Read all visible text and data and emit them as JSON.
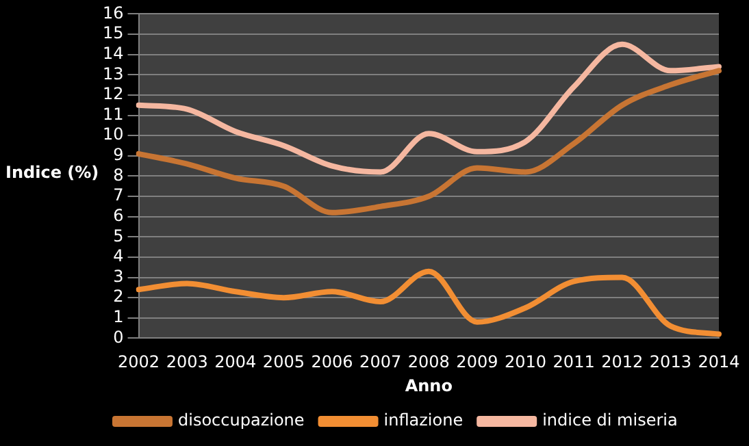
{
  "chart_data": {
    "type": "line",
    "xlabel": "Anno",
    "ylabel": "Indice (%)",
    "categories": [
      "2002",
      "2003",
      "2004",
      "2005",
      "2006",
      "2007",
      "2008",
      "2009",
      "2010",
      "2011",
      "2012",
      "2013",
      "2014"
    ],
    "series": [
      {
        "name": "disoccupazione",
        "color": "#c87533",
        "values": [
          9.1,
          8.6,
          7.9,
          7.5,
          6.2,
          6.5,
          7.0,
          8.4,
          8.2,
          9.6,
          11.5,
          12.5,
          13.2
        ]
      },
      {
        "name": "inflazione",
        "color": "#f28e33",
        "values": [
          2.4,
          2.7,
          2.3,
          2.0,
          2.3,
          1.8,
          3.3,
          0.8,
          1.5,
          2.8,
          3.0,
          0.6,
          0.2
        ]
      },
      {
        "name": "indice di miseria",
        "color": "#f5b7a0",
        "values": [
          11.5,
          11.3,
          10.2,
          9.5,
          8.5,
          8.2,
          10.1,
          9.2,
          9.7,
          12.4,
          14.5,
          13.2,
          13.4
        ]
      }
    ],
    "ylim": [
      0,
      16
    ],
    "yticks": [
      0,
      1,
      2,
      3,
      4,
      5,
      6,
      7,
      8,
      9,
      10,
      11,
      12,
      13,
      14,
      15,
      16
    ],
    "grid": "y",
    "legend": "bottom",
    "marker": "none",
    "line_style": "solid"
  }
}
